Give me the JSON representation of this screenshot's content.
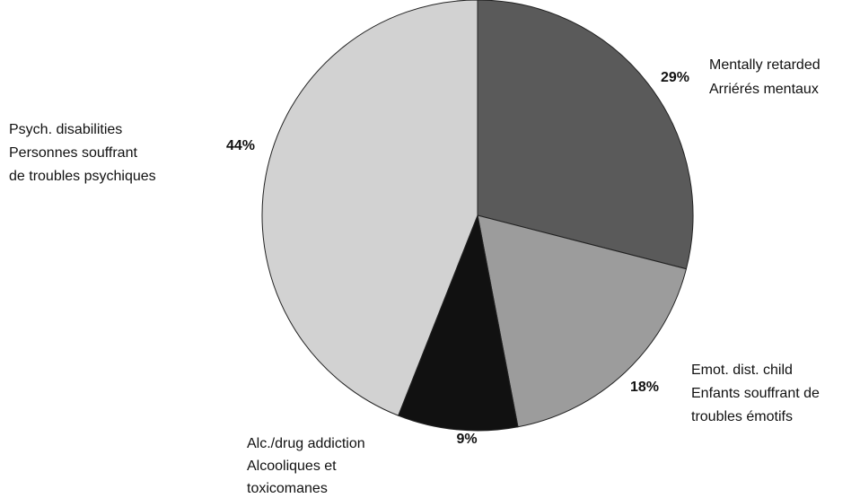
{
  "chart_data": {
    "type": "pie",
    "categories": [
      [
        "Mentally retarded",
        "Arriérés mentaux"
      ],
      [
        "Emot. dist. child",
        "Enfants souffrant de",
        "troubles émotifs"
      ],
      [
        "Alc./drug addiction",
        "Alcooliques et",
        "toxicomanes"
      ],
      [
        "Psych. disabilities",
        "Personnes souffrant",
        "de troubles psychiques"
      ]
    ],
    "values": [
      29,
      18,
      9,
      44
    ],
    "value_labels": [
      "29%",
      "18%",
      "9%",
      "44%"
    ],
    "colors": [
      "#5a5a5a",
      "#9c9c9c",
      "#111111",
      "#d2d2d2"
    ]
  }
}
